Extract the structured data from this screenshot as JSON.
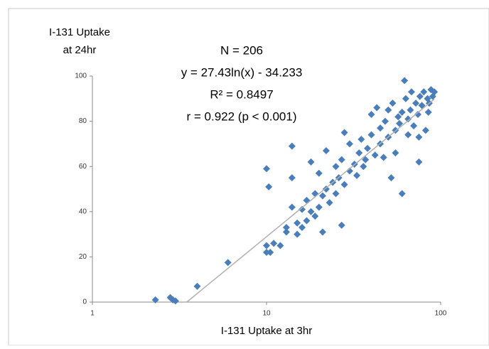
{
  "chart_data": {
    "type": "scatter",
    "ylabel_lines": [
      "I-131 Uptake",
      "at 24hr"
    ],
    "xlabel": "I-131 Uptake at 3hr",
    "annotations": [
      "N = 206",
      "y = 27.43ln(x) - 34.233",
      "R² = 0.8497",
      "r = 0.922 (p < 0.001)"
    ],
    "trendline": {
      "coefficient": 27.43,
      "intercept": -34.233,
      "color": "#b0b0b0"
    },
    "xscale": "log",
    "xlim": [
      1,
      100
    ],
    "xticks": [
      1,
      10,
      100
    ],
    "ylim": [
      0,
      100
    ],
    "yticks": [
      0,
      20,
      40,
      60,
      80,
      100
    ],
    "series": [
      {
        "color": "#4a7ebb",
        "x": [
          2.3,
          2.8,
          2.9,
          3.0,
          4,
          6,
          10,
          10,
          10.5,
          10,
          10.3,
          11,
          12,
          13,
          13,
          14,
          14,
          14,
          15,
          15,
          16,
          16,
          17,
          17,
          18,
          18,
          19,
          19,
          20,
          20,
          21,
          21,
          22,
          22,
          23,
          24,
          25,
          25,
          26,
          27,
          27,
          28,
          28,
          30,
          30,
          32,
          33,
          34,
          35,
          36,
          37,
          38,
          40,
          40,
          42,
          43,
          45,
          45,
          47,
          48,
          50,
          50,
          52,
          53,
          55,
          55,
          57,
          58,
          60,
          60,
          62,
          63,
          65,
          67,
          68,
          70,
          72,
          74,
          75,
          76,
          78,
          80,
          82,
          84,
          86,
          88,
          90,
          92,
          75,
          65,
          85
        ],
        "values": [
          1,
          2,
          1,
          0.5,
          7,
          17.5,
          22,
          25,
          22,
          59,
          51,
          26,
          25,
          31,
          33,
          42,
          69,
          55,
          35,
          30,
          33,
          41,
          36,
          45,
          40,
          62,
          38,
          48,
          42,
          57,
          31,
          47,
          50,
          67,
          44,
          53,
          48,
          60,
          55,
          34,
          63,
          52,
          75,
          58,
          70,
          61,
          56,
          66,
          72,
          60,
          63,
          68,
          74,
          83,
          65,
          86,
          70,
          77,
          64,
          80,
          73,
          85,
          55,
          88,
          76,
          66,
          82,
          79,
          48,
          84,
          98,
          90,
          81,
          85,
          93,
          78,
          88,
          83,
          62,
          91,
          87,
          93,
          76,
          90,
          88,
          94,
          91,
          93,
          73,
          74,
          84
        ]
      }
    ]
  }
}
